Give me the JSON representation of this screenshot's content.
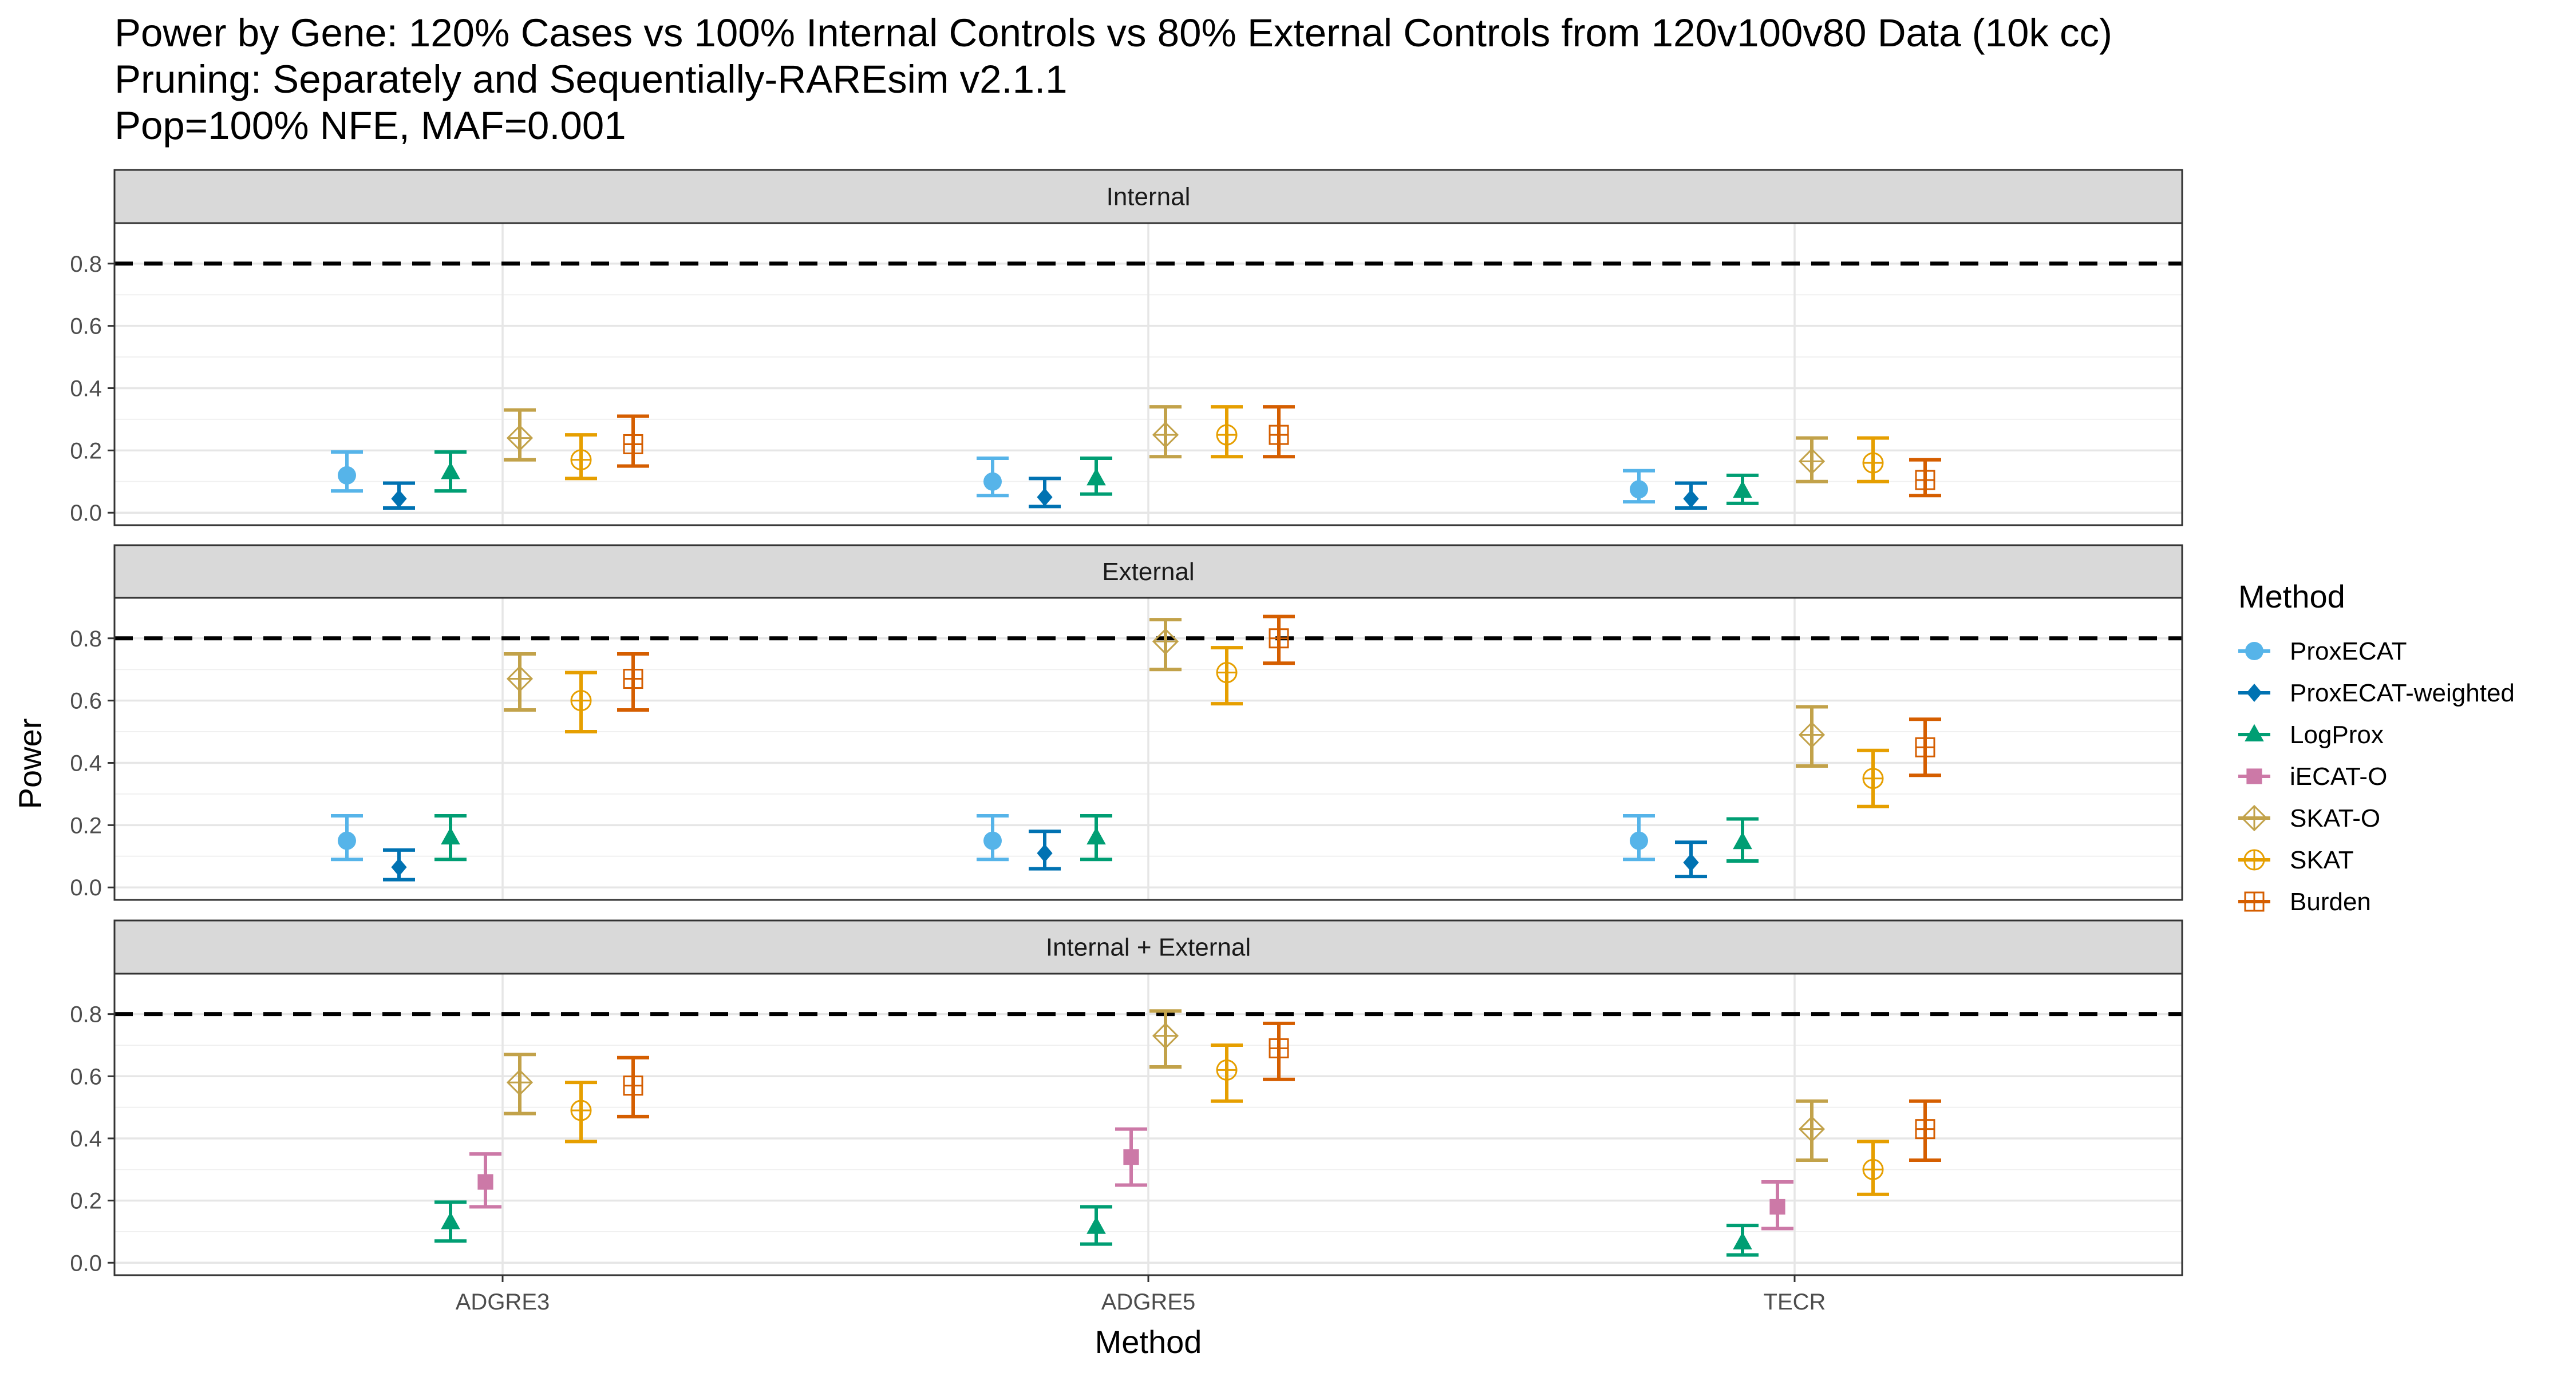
{
  "chart_data": {
    "type": "scatter",
    "title_lines": [
      "Power by Gene: 120% Cases vs 100% Internal Controls vs 80% External Controls from 120v100v80 Data (10k cc)",
      "Pruning: Separately and Sequentially-RAREsim v2.1.1",
      "Pop=100% NFE, MAF=0.001"
    ],
    "xlabel": "Method",
    "ylabel": "Power",
    "categories": [
      "ADGRE3",
      "ADGRE5",
      "TECR"
    ],
    "y_ticks": [
      "0.0",
      "0.2",
      "0.4",
      "0.6",
      "0.8"
    ],
    "ylim": [
      -0.04,
      0.93
    ],
    "reference_line": 0.8,
    "legend_title": "Method",
    "methods": [
      {
        "name": "ProxECAT",
        "color": "#56B4E9",
        "shape": "circle"
      },
      {
        "name": "ProxECAT-weighted",
        "color": "#0072B2",
        "shape": "diamond"
      },
      {
        "name": "LogProx",
        "color": "#009E73",
        "shape": "triangle"
      },
      {
        "name": "iECAT-O",
        "color": "#CC79A7",
        "shape": "square"
      },
      {
        "name": "SKAT-O",
        "color": "#C2A24A",
        "shape": "diamond-plus"
      },
      {
        "name": "SKAT",
        "color": "#E69F00",
        "shape": "circle-plus"
      },
      {
        "name": "Burden",
        "color": "#D55E00",
        "shape": "square-plus"
      }
    ],
    "panels": [
      {
        "label": "Internal",
        "series": [
          {
            "method": "ProxECAT",
            "values": [
              {
                "y": 0.12,
                "lo": 0.07,
                "hi": 0.195
              },
              {
                "y": 0.1,
                "lo": 0.055,
                "hi": 0.175
              },
              {
                "y": 0.075,
                "lo": 0.035,
                "hi": 0.135
              }
            ]
          },
          {
            "method": "ProxECAT-weighted",
            "values": [
              {
                "y": 0.045,
                "lo": 0.015,
                "hi": 0.095
              },
              {
                "y": 0.05,
                "lo": 0.02,
                "hi": 0.11
              },
              {
                "y": 0.045,
                "lo": 0.015,
                "hi": 0.095
              }
            ]
          },
          {
            "method": "LogProx",
            "values": [
              {
                "y": 0.13,
                "lo": 0.07,
                "hi": 0.195
              },
              {
                "y": 0.11,
                "lo": 0.06,
                "hi": 0.175
              },
              {
                "y": 0.07,
                "lo": 0.03,
                "hi": 0.12
              }
            ]
          },
          {
            "method": "SKAT-O",
            "values": [
              {
                "y": 0.24,
                "lo": 0.17,
                "hi": 0.33
              },
              {
                "y": 0.25,
                "lo": 0.18,
                "hi": 0.34
              },
              {
                "y": 0.165,
                "lo": 0.1,
                "hi": 0.24
              }
            ]
          },
          {
            "method": "SKAT",
            "values": [
              {
                "y": 0.17,
                "lo": 0.11,
                "hi": 0.25
              },
              {
                "y": 0.25,
                "lo": 0.18,
                "hi": 0.34
              },
              {
                "y": 0.16,
                "lo": 0.1,
                "hi": 0.24
              }
            ]
          },
          {
            "method": "Burden",
            "values": [
              {
                "y": 0.22,
                "lo": 0.15,
                "hi": 0.31
              },
              {
                "y": 0.25,
                "lo": 0.18,
                "hi": 0.34
              },
              {
                "y": 0.105,
                "lo": 0.055,
                "hi": 0.17
              }
            ]
          }
        ]
      },
      {
        "label": "External",
        "series": [
          {
            "method": "ProxECAT",
            "values": [
              {
                "y": 0.15,
                "lo": 0.09,
                "hi": 0.23
              },
              {
                "y": 0.15,
                "lo": 0.09,
                "hi": 0.23
              },
              {
                "y": 0.15,
                "lo": 0.09,
                "hi": 0.23
              }
            ]
          },
          {
            "method": "ProxECAT-weighted",
            "values": [
              {
                "y": 0.065,
                "lo": 0.025,
                "hi": 0.12
              },
              {
                "y": 0.11,
                "lo": 0.06,
                "hi": 0.18
              },
              {
                "y": 0.08,
                "lo": 0.035,
                "hi": 0.145
              }
            ]
          },
          {
            "method": "LogProx",
            "values": [
              {
                "y": 0.16,
                "lo": 0.09,
                "hi": 0.23
              },
              {
                "y": 0.16,
                "lo": 0.09,
                "hi": 0.23
              },
              {
                "y": 0.145,
                "lo": 0.085,
                "hi": 0.22
              }
            ]
          },
          {
            "method": "SKAT-O",
            "values": [
              {
                "y": 0.67,
                "lo": 0.57,
                "hi": 0.75
              },
              {
                "y": 0.79,
                "lo": 0.7,
                "hi": 0.86
              },
              {
                "y": 0.49,
                "lo": 0.39,
                "hi": 0.58
              }
            ]
          },
          {
            "method": "SKAT",
            "values": [
              {
                "y": 0.6,
                "lo": 0.5,
                "hi": 0.69
              },
              {
                "y": 0.69,
                "lo": 0.59,
                "hi": 0.77
              },
              {
                "y": 0.35,
                "lo": 0.26,
                "hi": 0.44
              }
            ]
          },
          {
            "method": "Burden",
            "values": [
              {
                "y": 0.67,
                "lo": 0.57,
                "hi": 0.75
              },
              {
                "y": 0.8,
                "lo": 0.72,
                "hi": 0.87
              },
              {
                "y": 0.45,
                "lo": 0.36,
                "hi": 0.54
              }
            ]
          }
        ]
      },
      {
        "label": "Internal + External",
        "series": [
          {
            "method": "LogProx",
            "values": [
              {
                "y": 0.13,
                "lo": 0.07,
                "hi": 0.195
              },
              {
                "y": 0.115,
                "lo": 0.06,
                "hi": 0.18
              },
              {
                "y": 0.065,
                "lo": 0.025,
                "hi": 0.12
              }
            ]
          },
          {
            "method": "iECAT-O",
            "values": [
              {
                "y": 0.26,
                "lo": 0.18,
                "hi": 0.35
              },
              {
                "y": 0.34,
                "lo": 0.25,
                "hi": 0.43
              },
              {
                "y": 0.18,
                "lo": 0.11,
                "hi": 0.26
              }
            ]
          },
          {
            "method": "SKAT-O",
            "values": [
              {
                "y": 0.58,
                "lo": 0.48,
                "hi": 0.67
              },
              {
                "y": 0.73,
                "lo": 0.63,
                "hi": 0.81
              },
              {
                "y": 0.43,
                "lo": 0.33,
                "hi": 0.52
              }
            ]
          },
          {
            "method": "SKAT",
            "values": [
              {
                "y": 0.49,
                "lo": 0.39,
                "hi": 0.58
              },
              {
                "y": 0.62,
                "lo": 0.52,
                "hi": 0.7
              },
              {
                "y": 0.3,
                "lo": 0.22,
                "hi": 0.39
              }
            ]
          },
          {
            "method": "Burden",
            "values": [
              {
                "y": 0.57,
                "lo": 0.47,
                "hi": 0.66
              },
              {
                "y": 0.69,
                "lo": 0.59,
                "hi": 0.77
              },
              {
                "y": 0.43,
                "lo": 0.33,
                "hi": 0.52
              }
            ]
          }
        ]
      }
    ]
  }
}
